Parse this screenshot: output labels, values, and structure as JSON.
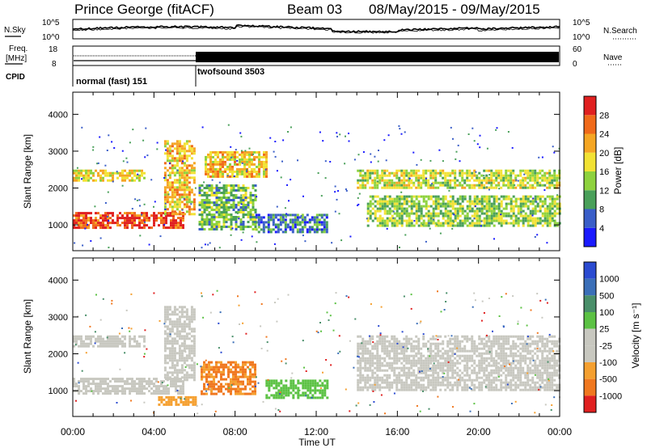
{
  "header": {
    "station": "Prince George (fitACF)",
    "beam": "Beam 03",
    "date_range": "08/May/2015 - 09/May/2015"
  },
  "panels": {
    "nsky": {
      "label": "N.Sky",
      "ticks": [
        "10^5",
        "10^0"
      ]
    },
    "nsearch": {
      "label": "N.Search",
      "ticks": [
        "10^5",
        "10^0"
      ]
    },
    "freq": {
      "label_line1": "Freq.",
      "label_line2": "[MHz]",
      "ticks": [
        "18",
        "8"
      ]
    },
    "nave": {
      "label": "Nave",
      "ticks": [
        "60",
        "0"
      ]
    },
    "cpid": {
      "label": "CPID",
      "modes": [
        "normal (fast) 151",
        "twofsound 3503"
      ]
    }
  },
  "colors": {
    "power_scale": [
      "#1a1aff",
      "#3a5ec8",
      "#4aa05a",
      "#8ed23e",
      "#f2e234",
      "#f5a623",
      "#f06a1a",
      "#e02020"
    ],
    "velocity_scale": [
      "#2b4bd1",
      "#3b6fb8",
      "#4a8f6a",
      "#5cc244",
      "#c8c8c0",
      "#c8c8c0",
      "#f5a030",
      "#f07820",
      "#e02020"
    ],
    "ground_scatter": "#c8c8c0"
  },
  "chart_data": [
    {
      "type": "heatmap",
      "title": "Power",
      "ylabel": "Slant Range [km]",
      "ylim": [
        300,
        4600
      ],
      "yticks": [
        "1000",
        "2000",
        "3000",
        "4000"
      ],
      "xlim_hours": [
        0,
        24
      ],
      "colorbar": {
        "label": "Power [dB]",
        "ticks": [
          "4",
          "8",
          "12",
          "16",
          "20",
          "24",
          "28"
        ],
        "range": [
          0,
          32
        ]
      },
      "regions": [
        {
          "t0": 0.0,
          "t1": 5.5,
          "r0": 950,
          "r1": 1350,
          "value": 28
        },
        {
          "t0": 0.0,
          "t1": 3.5,
          "r0": 2200,
          "r1": 2500,
          "value": 18
        },
        {
          "t0": 4.5,
          "t1": 6.0,
          "r0": 1300,
          "r1": 3300,
          "value": 20
        },
        {
          "t0": 6.2,
          "t1": 9.0,
          "r0": 900,
          "r1": 2100,
          "value": 12
        },
        {
          "t0": 6.5,
          "t1": 9.5,
          "r0": 2300,
          "r1": 3000,
          "value": 20
        },
        {
          "t0": 9.0,
          "t1": 12.5,
          "r0": 800,
          "r1": 1300,
          "value": 8
        },
        {
          "t0": 14.5,
          "t1": 24.0,
          "r0": 1000,
          "r1": 1800,
          "value": 14
        },
        {
          "t0": 14.0,
          "t1": 24.0,
          "r0": 2000,
          "r1": 2500,
          "value": 16
        }
      ]
    },
    {
      "type": "heatmap",
      "title": "Velocity",
      "ylabel": "Slant Range [km]",
      "ylim": [
        300,
        4600
      ],
      "yticks": [
        "1000",
        "2000",
        "3000",
        "4000"
      ],
      "xlim_hours": [
        0,
        24
      ],
      "xlabel": "Time UT",
      "xticks": [
        "00:00",
        "04:00",
        "08:00",
        "12:00",
        "16:00",
        "20:00",
        "00:00"
      ],
      "colorbar": {
        "label": "Velocity [m s⁻¹]",
        "ticks": [
          "1000",
          "500",
          "100",
          "25",
          "-25",
          "-100",
          "-500",
          "-1000"
        ]
      },
      "regions": [
        {
          "t0": 0.0,
          "t1": 5.5,
          "r0": 950,
          "r1": 1350,
          "value": 0
        },
        {
          "t0": 0.0,
          "t1": 3.5,
          "r0": 2200,
          "r1": 2500,
          "value": 0
        },
        {
          "t0": 4.5,
          "t1": 6.0,
          "r0": 1300,
          "r1": 3300,
          "value": 0
        },
        {
          "t0": 4.2,
          "t1": 6.0,
          "r0": 600,
          "r1": 850,
          "value": -300
        },
        {
          "t0": 6.3,
          "t1": 9.0,
          "r0": 900,
          "r1": 1800,
          "value": -600
        },
        {
          "t0": 9.5,
          "t1": 12.5,
          "r0": 800,
          "r1": 1300,
          "value": 60
        },
        {
          "t0": 14.0,
          "t1": 24.0,
          "r0": 1000,
          "r1": 2500,
          "value": 0
        }
      ]
    }
  ]
}
